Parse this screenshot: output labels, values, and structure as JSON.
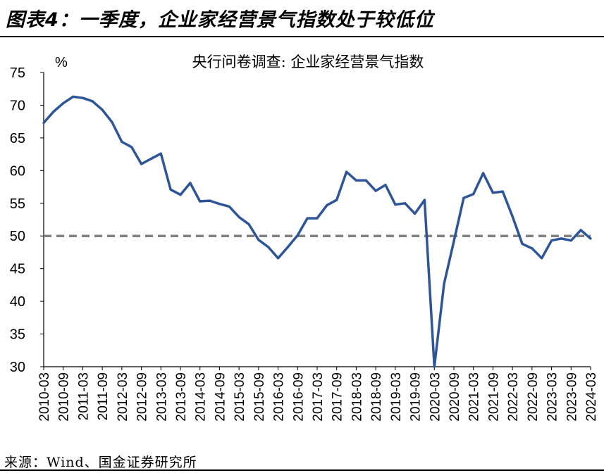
{
  "figure": {
    "title": "图表4：一季度，企业家经营景气指数处于较低位",
    "source": "来源：Wind、国金证券研究所"
  },
  "colors": {
    "series_line": "#2E5597",
    "reference_line": "#808080",
    "axis": "#000000"
  },
  "chart_data": {
    "type": "line",
    "title": "央行问卷调查: 企业家经营景气指数",
    "ylabel": "%",
    "xlabel": "",
    "ylim": [
      30,
      75
    ],
    "yticks": [
      30,
      35,
      40,
      45,
      50,
      55,
      60,
      65,
      70,
      75
    ],
    "reference_line": 50,
    "grid": false,
    "xticks": [
      "2010-03",
      "2010-09",
      "2011-03",
      "2011-09",
      "2012-03",
      "2012-09",
      "2013-03",
      "2013-09",
      "2014-03",
      "2014-09",
      "2015-03",
      "2015-09",
      "2016-03",
      "2016-09",
      "2017-03",
      "2017-09",
      "2018-03",
      "2018-09",
      "2019-03",
      "2019-09",
      "2020-03",
      "2020-09",
      "2021-03",
      "2021-09",
      "2022-03",
      "2022-09",
      "2023-03",
      "2023-09",
      "2024-03"
    ],
    "x": [
      "2010-03",
      "2010-06",
      "2010-09",
      "2010-12",
      "2011-03",
      "2011-06",
      "2011-09",
      "2011-12",
      "2012-03",
      "2012-06",
      "2012-09",
      "2012-12",
      "2013-03",
      "2013-06",
      "2013-09",
      "2013-12",
      "2014-03",
      "2014-06",
      "2014-09",
      "2014-12",
      "2015-03",
      "2015-06",
      "2015-09",
      "2015-12",
      "2016-03",
      "2016-06",
      "2016-09",
      "2016-12",
      "2017-03",
      "2017-06",
      "2017-09",
      "2017-12",
      "2018-03",
      "2018-06",
      "2018-09",
      "2018-12",
      "2019-03",
      "2019-06",
      "2019-09",
      "2019-12",
      "2020-03",
      "2020-06",
      "2020-09",
      "2020-12",
      "2021-03",
      "2021-06",
      "2021-09",
      "2021-12",
      "2022-03",
      "2022-06",
      "2022-09",
      "2022-12",
      "2023-03",
      "2023-06",
      "2023-09",
      "2023-12",
      "2024-03"
    ],
    "series": [
      {
        "values": [
          67.3,
          69.0,
          70.3,
          71.3,
          71.1,
          70.6,
          69.3,
          67.4,
          64.4,
          63.6,
          61.0,
          61.8,
          62.6,
          57.1,
          56.3,
          58.1,
          55.3,
          55.4,
          54.9,
          54.5,
          52.9,
          51.8,
          49.4,
          48.3,
          46.6,
          48.3,
          50.1,
          52.7,
          52.7,
          54.7,
          55.5,
          59.8,
          58.5,
          58.5,
          56.9,
          57.8,
          54.8,
          55.0,
          53.4,
          55.5,
          30.0,
          42.7,
          49.2,
          55.8,
          56.4,
          59.6,
          56.6,
          56.8,
          53.0,
          48.8,
          48.1,
          46.6,
          49.3,
          49.6,
          49.3,
          50.9,
          49.6
        ]
      }
    ]
  }
}
